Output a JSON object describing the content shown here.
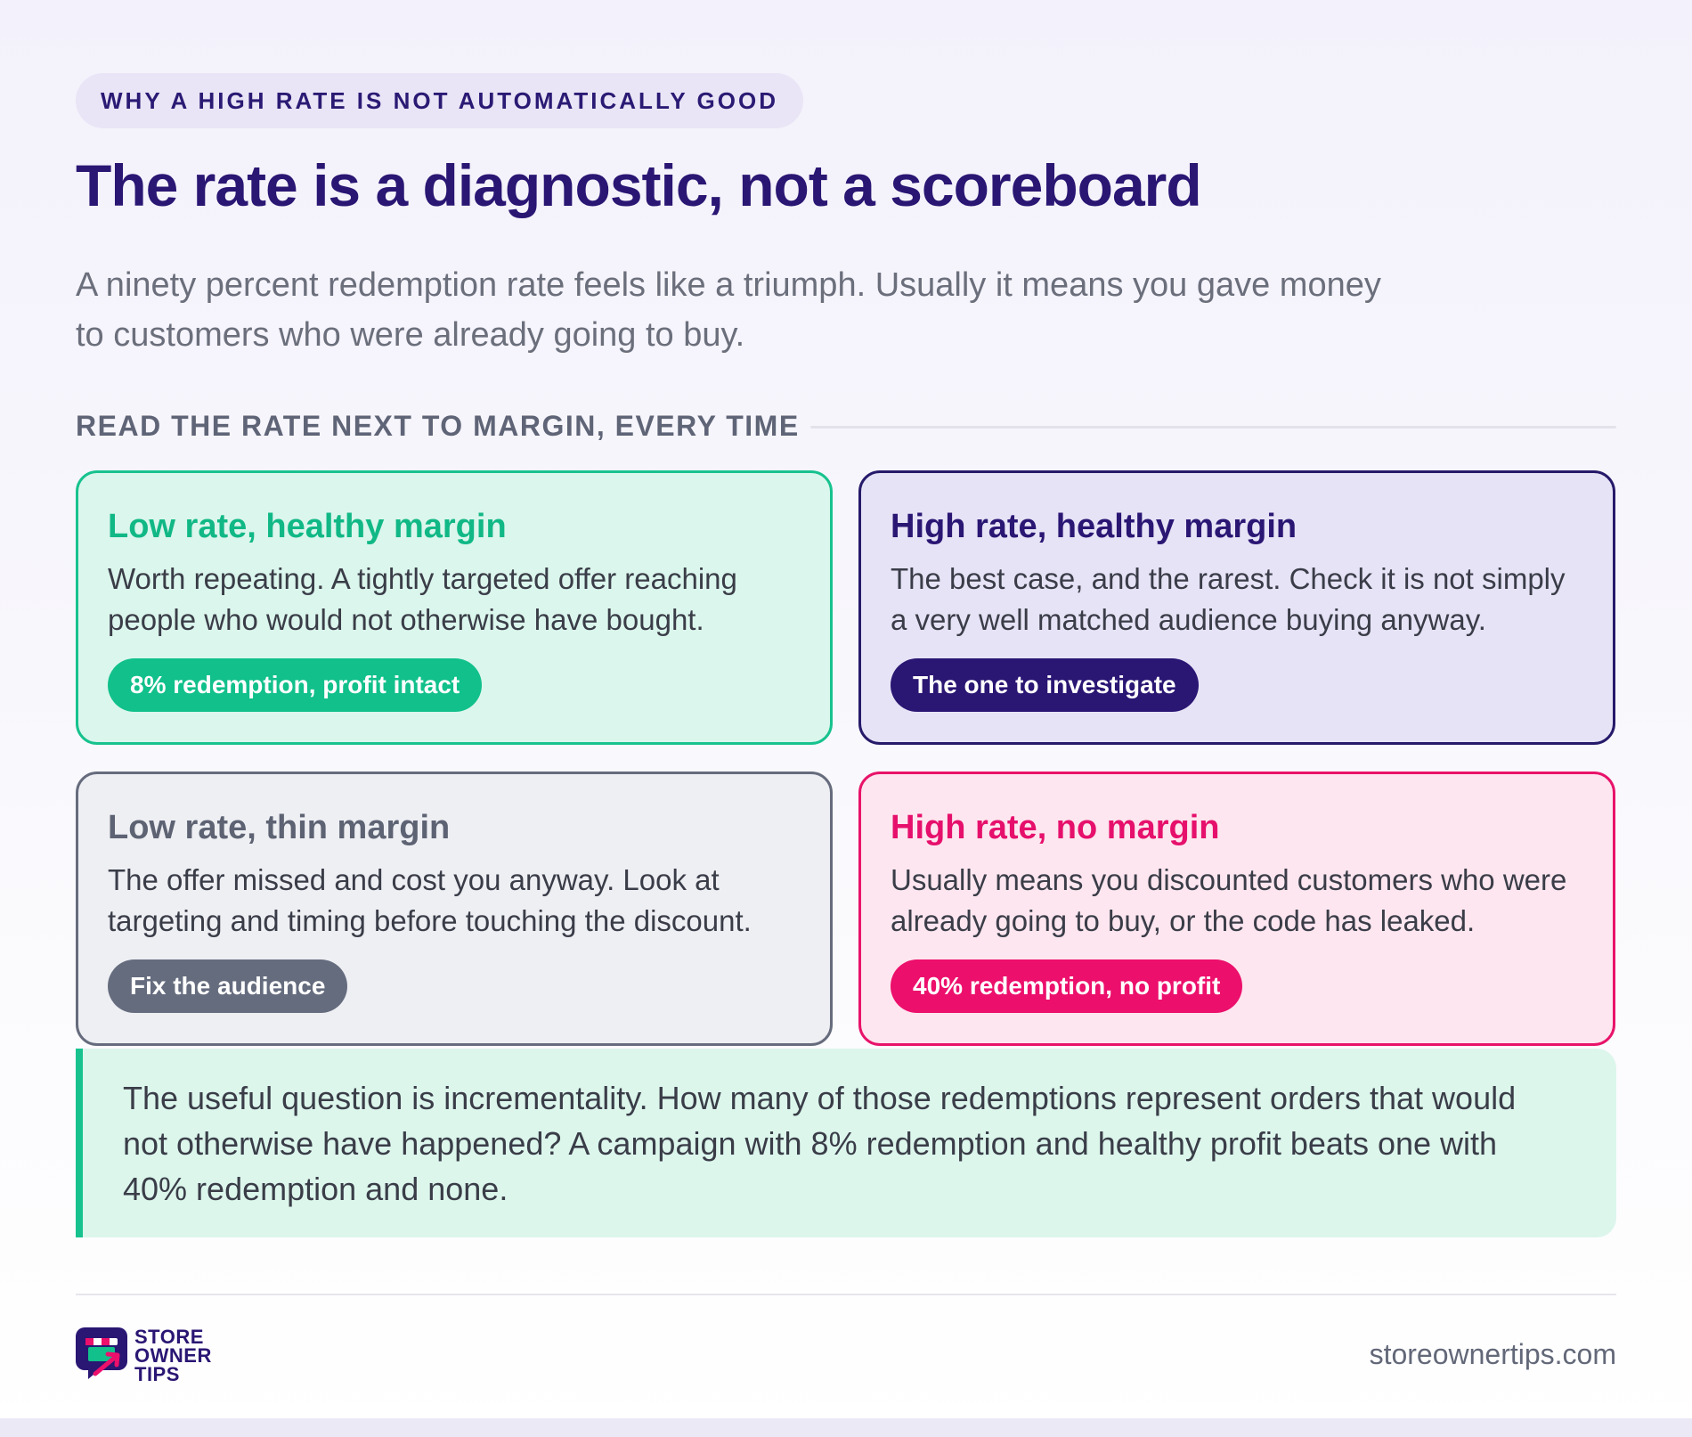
{
  "eyebrow": "WHY A HIGH RATE IS NOT AUTOMATICALLY GOOD",
  "title": "The rate is a diagnostic, not a scoreboard",
  "subtitle": "A ninety percent redemption rate feels like a triumph. Usually it means you gave money to customers who were already going to buy.",
  "section_label": "READ THE RATE NEXT TO MARGIN, EVERY TIME",
  "cards": [
    {
      "title": "Low rate, healthy margin",
      "body": "Worth repeating. A tightly targeted offer reaching people who would not otherwise have bought.",
      "pill": "8% redemption, profit intact"
    },
    {
      "title": "High rate, healthy margin",
      "body": "The best case, and the rarest. Check it is not simply a very well matched audience buying anyway.",
      "pill": "The one to investigate"
    },
    {
      "title": "Low rate, thin margin",
      "body": "The offer missed and cost you anyway. Look at targeting and timing before touching the discount.",
      "pill": "Fix the audience"
    },
    {
      "title": "High rate, no margin",
      "body": "Usually means you discounted customers who were already going to buy, or the code has leaked.",
      "pill": "40% redemption, no profit"
    }
  ],
  "callout": "The useful question is incrementality. How many of those redemptions represent orders that would not otherwise have happened? A campaign with 8% redemption and healthy profit beats one with 40% redemption and none.",
  "footer": {
    "logo_lines": [
      "STORE",
      "OWNER",
      "TIPS"
    ],
    "logo_icon": "storefront-chat-icon",
    "site": "storeownertips.com"
  },
  "colors": {
    "brand_purple": "#2a1673",
    "green": "#11c08b",
    "pink": "#ec0f6c",
    "gray": "#656c7e"
  }
}
